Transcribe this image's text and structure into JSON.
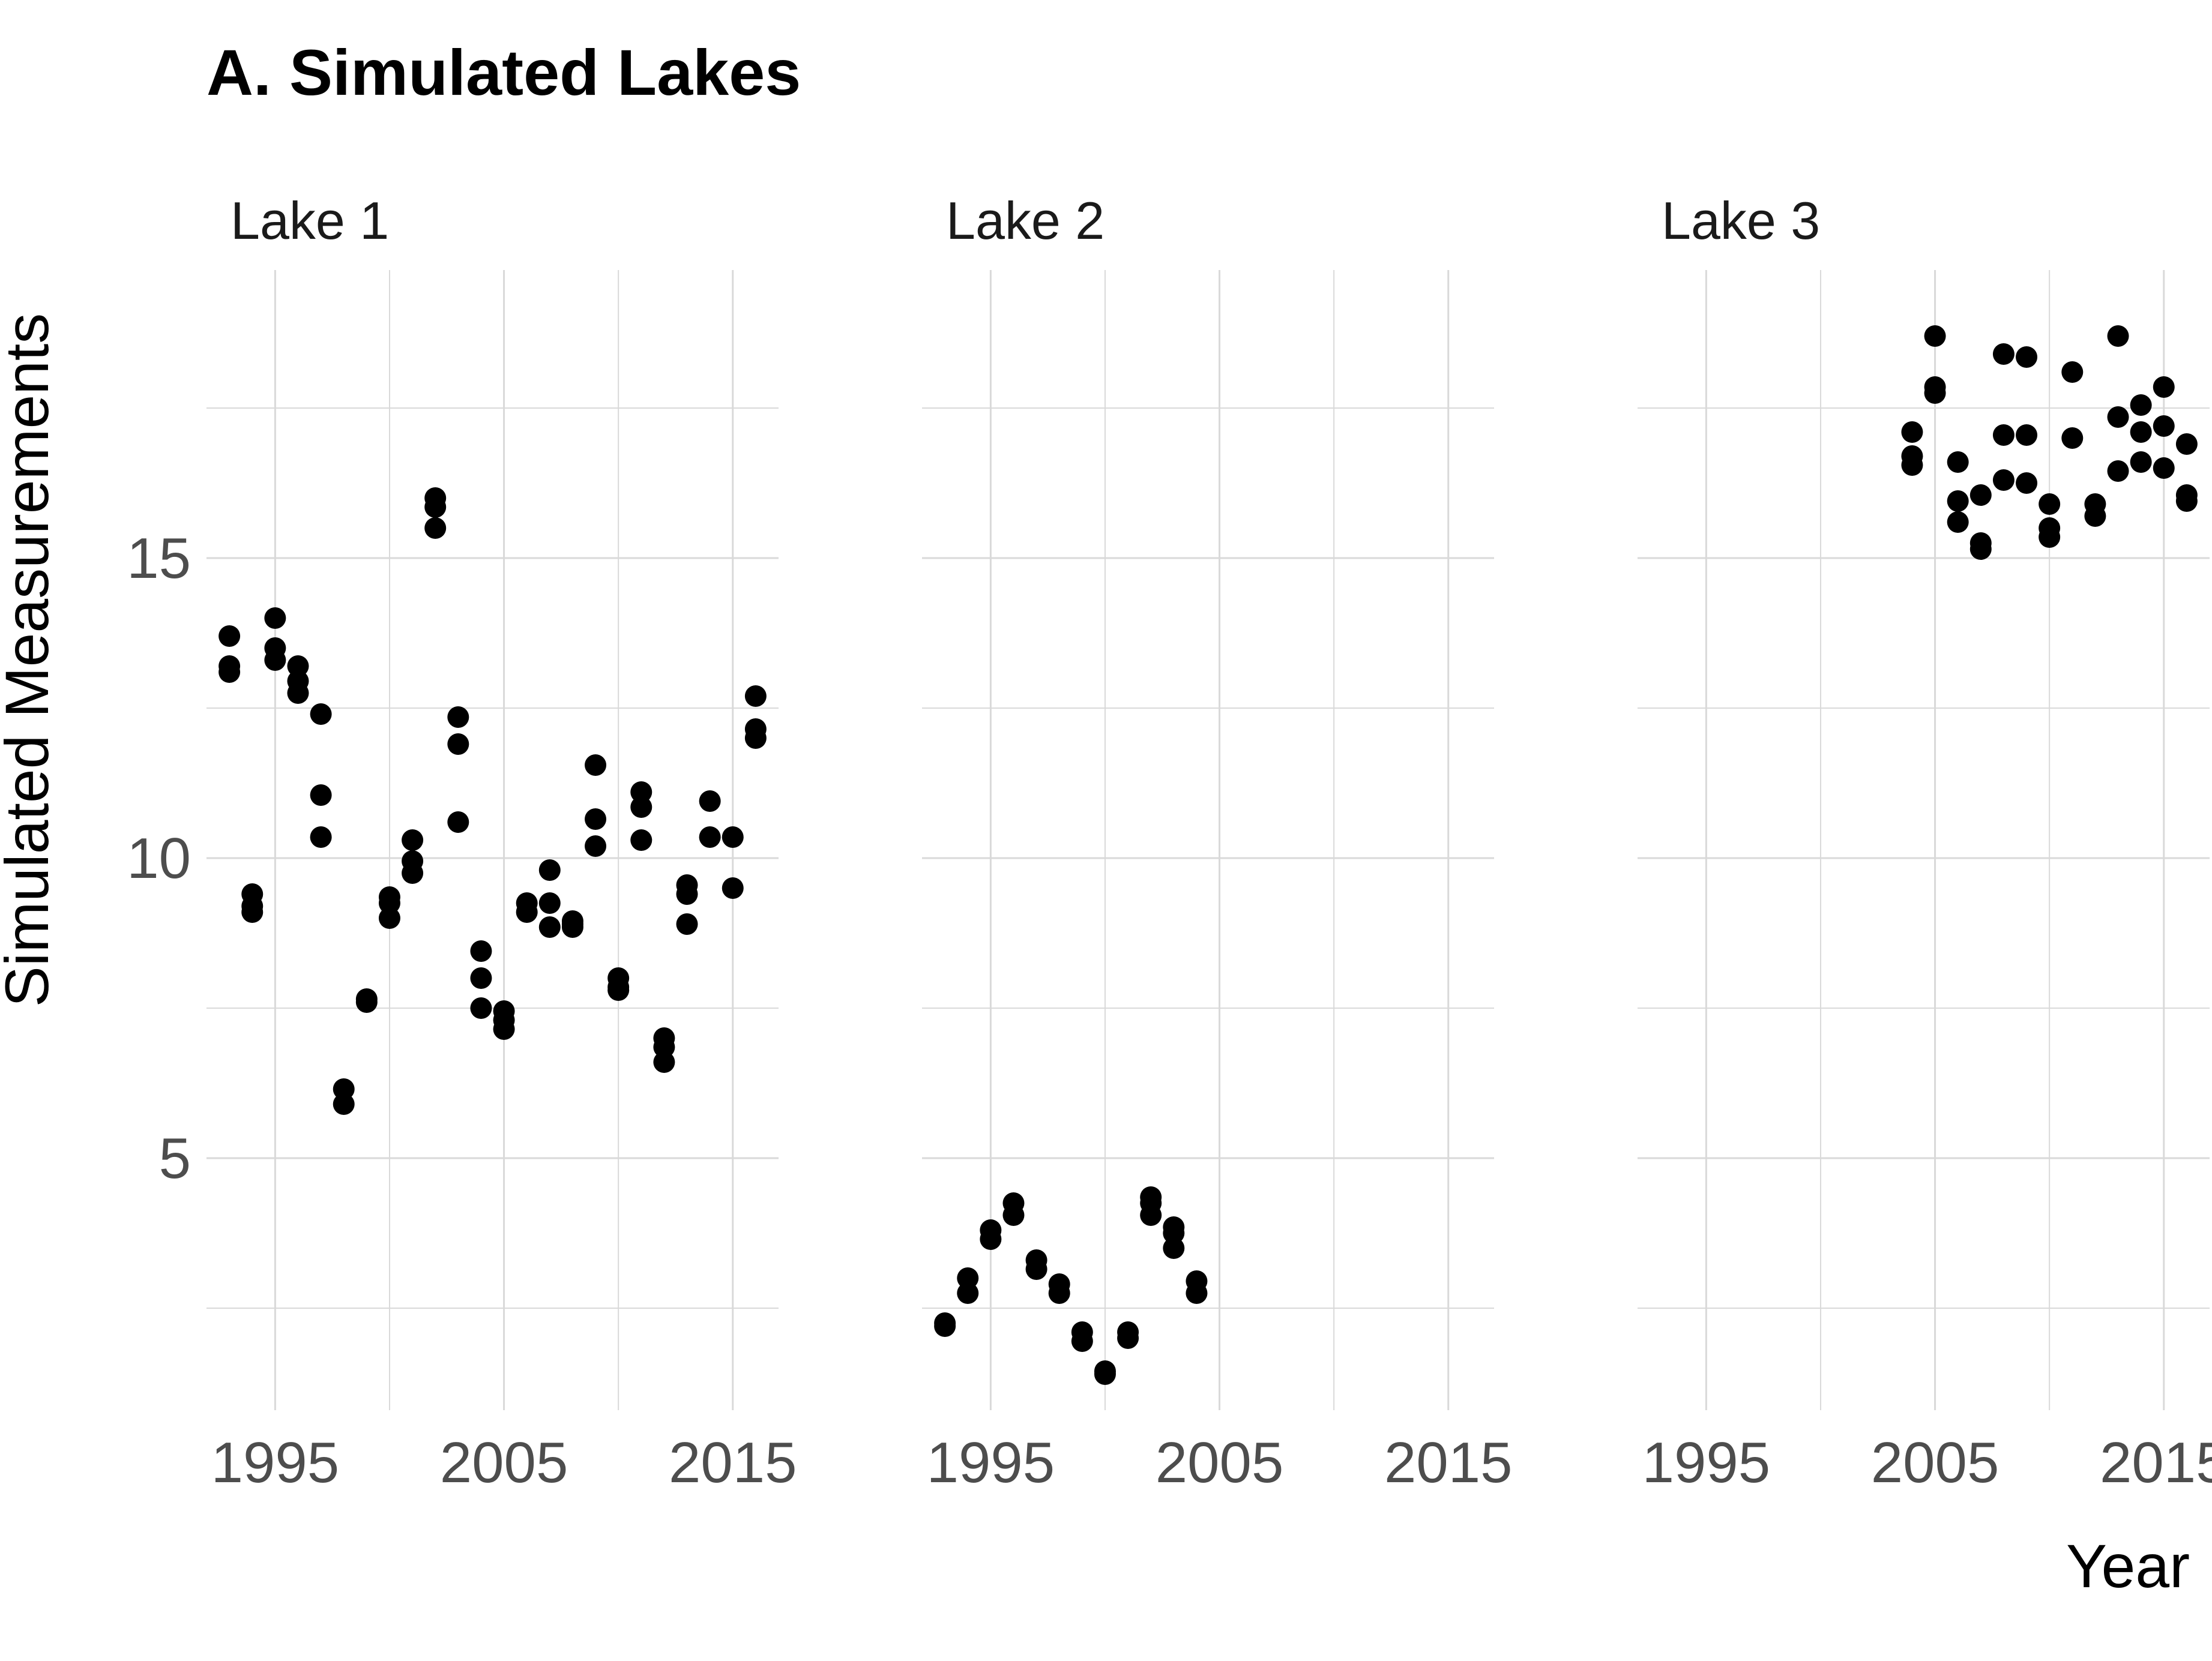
{
  "chart_data": {
    "type": "scatter",
    "title": "A. Simulated Lakes",
    "xlabel": "Year",
    "ylabel": "Simulated Measurements",
    "xlim": [
      1992,
      2017
    ],
    "ylim": [
      0.8,
      19.8
    ],
    "x_ticks": [
      1995,
      2005,
      2015
    ],
    "x_tick_labels": [
      "1995",
      "2005",
      "2015"
    ],
    "y_ticks": [
      5,
      10,
      15
    ],
    "y_tick_labels": [
      "5",
      "10",
      "15"
    ],
    "grid": true,
    "legend": "none",
    "point_color": "#000000",
    "grid_color": "#d9d9d9",
    "panels": [
      {
        "name": "Lake 1",
        "points": [
          [
            1993,
            13.7
          ],
          [
            1993,
            13.2
          ],
          [
            1993,
            13.1
          ],
          [
            1994,
            9.4
          ],
          [
            1994,
            9.2
          ],
          [
            1994,
            9.1
          ],
          [
            1995,
            14.0
          ],
          [
            1995,
            13.5
          ],
          [
            1995,
            13.3
          ],
          [
            1996,
            13.2
          ],
          [
            1996,
            12.95
          ],
          [
            1996,
            12.75
          ],
          [
            1997,
            12.4
          ],
          [
            1997,
            11.05
          ],
          [
            1997,
            10.35
          ],
          [
            1998,
            6.15
          ],
          [
            1998,
            5.9
          ],
          [
            1999,
            7.65
          ],
          [
            1999,
            7.6
          ],
          [
            2000,
            9.35
          ],
          [
            2000,
            9.25
          ],
          [
            2000,
            9.0
          ],
          [
            2001,
            10.3
          ],
          [
            2001,
            9.95
          ],
          [
            2001,
            9.75
          ],
          [
            2002,
            16.0
          ],
          [
            2002,
            15.85
          ],
          [
            2002,
            15.5
          ],
          [
            2003,
            12.35
          ],
          [
            2003,
            11.9
          ],
          [
            2003,
            10.6
          ],
          [
            2004,
            8.45
          ],
          [
            2004,
            8.0
          ],
          [
            2004,
            7.5
          ],
          [
            2005,
            7.45
          ],
          [
            2005,
            7.3
          ],
          [
            2005,
            7.15
          ],
          [
            2006,
            9.25
          ],
          [
            2006,
            9.1
          ],
          [
            2007,
            9.8
          ],
          [
            2007,
            9.25
          ],
          [
            2007,
            8.85
          ],
          [
            2008,
            8.95
          ],
          [
            2008,
            8.9
          ],
          [
            2008,
            8.85
          ],
          [
            2009,
            11.55
          ],
          [
            2009,
            10.65
          ],
          [
            2009,
            10.2
          ],
          [
            2010,
            8.0
          ],
          [
            2010,
            7.85
          ],
          [
            2010,
            7.8
          ],
          [
            2011,
            11.1
          ],
          [
            2011,
            10.85
          ],
          [
            2011,
            10.3
          ],
          [
            2012,
            7.0
          ],
          [
            2012,
            6.85
          ],
          [
            2012,
            6.6
          ],
          [
            2013,
            9.55
          ],
          [
            2013,
            9.4
          ],
          [
            2013,
            8.9
          ],
          [
            2014,
            10.95
          ],
          [
            2014,
            10.35
          ],
          [
            2015,
            10.35
          ],
          [
            2015,
            9.5
          ],
          [
            2016,
            12.7
          ],
          [
            2016,
            12.15
          ],
          [
            2016,
            12.0
          ]
        ]
      },
      {
        "name": "Lake 2",
        "points": [
          [
            1993,
            2.25
          ],
          [
            1993,
            2.2
          ],
          [
            1994,
            3.0
          ],
          [
            1994,
            2.75
          ],
          [
            1995,
            3.8
          ],
          [
            1995,
            3.65
          ],
          [
            1996,
            4.25
          ],
          [
            1996,
            4.05
          ],
          [
            1997,
            3.3
          ],
          [
            1997,
            3.15
          ],
          [
            1998,
            2.9
          ],
          [
            1998,
            2.75
          ],
          [
            1999,
            2.1
          ],
          [
            1999,
            1.95
          ],
          [
            2000,
            1.45
          ],
          [
            2000,
            1.4
          ],
          [
            2001,
            2.1
          ],
          [
            2001,
            2.0
          ],
          [
            2002,
            4.35
          ],
          [
            2002,
            4.25
          ],
          [
            2002,
            4.05
          ],
          [
            2003,
            3.85
          ],
          [
            2003,
            3.75
          ],
          [
            2003,
            3.5
          ],
          [
            2004,
            2.95
          ],
          [
            2004,
            2.75
          ]
        ]
      },
      {
        "name": "Lake 3",
        "points": [
          [
            2004,
            17.1
          ],
          [
            2004,
            16.7
          ],
          [
            2004,
            16.55
          ],
          [
            2005,
            18.7
          ],
          [
            2005,
            17.85
          ],
          [
            2005,
            17.75
          ],
          [
            2006,
            16.6
          ],
          [
            2006,
            15.95
          ],
          [
            2006,
            15.6
          ],
          [
            2007,
            16.05
          ],
          [
            2007,
            15.25
          ],
          [
            2007,
            15.15
          ],
          [
            2008,
            18.4
          ],
          [
            2008,
            17.05
          ],
          [
            2008,
            16.3
          ],
          [
            2009,
            18.35
          ],
          [
            2009,
            17.05
          ],
          [
            2009,
            16.25
          ],
          [
            2010,
            15.9
          ],
          [
            2010,
            15.5
          ],
          [
            2010,
            15.35
          ],
          [
            2011,
            18.1
          ],
          [
            2011,
            17.0
          ],
          [
            2012,
            15.9
          ],
          [
            2012,
            15.7
          ],
          [
            2013,
            18.7
          ],
          [
            2013,
            17.35
          ],
          [
            2013,
            16.45
          ],
          [
            2014,
            17.55
          ],
          [
            2014,
            17.1
          ],
          [
            2014,
            16.6
          ],
          [
            2015,
            17.85
          ],
          [
            2015,
            17.2
          ],
          [
            2015,
            16.5
          ],
          [
            2016,
            16.9
          ],
          [
            2016,
            16.05
          ],
          [
            2016,
            15.95
          ]
        ]
      }
    ]
  }
}
